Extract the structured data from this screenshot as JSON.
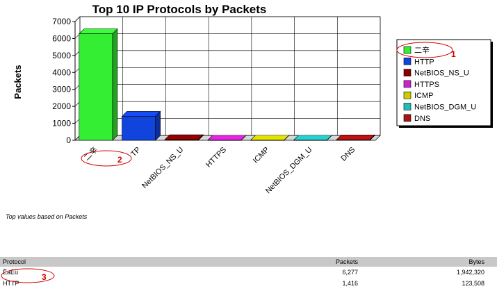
{
  "chart_data": {
    "type": "bar",
    "title": "Top 10 IP Protocols by Packets",
    "ylabel": "Packets",
    "ylim": [
      0,
      7000
    ],
    "yticks": [
      0,
      1000,
      2000,
      3000,
      4000,
      5000,
      6000,
      7000
    ],
    "categories": [
      "二辛",
      "HTTP",
      "NetBIOS_NS_U",
      "HTTPS",
      "ICMP",
      "NetBIOS_DGM_U",
      "DNS"
    ],
    "category_labels": [
      "二辛",
      "TP",
      "NetBIOS_NS_U",
      "HTTPS",
      "ICMP",
      "NetBIOS_DGM_U",
      "DNS"
    ],
    "values": [
      6277,
      1416,
      40,
      10,
      10,
      10,
      30
    ],
    "colors": [
      "#33ee33",
      "#1144dd",
      "#880000",
      "#cc22cc",
      "#cccc00",
      "#22bbbb",
      "#aa1111"
    ],
    "grid": true,
    "legend_position": "right",
    "legend": [
      "二辛",
      "HTTP",
      "NetBIOS_NS_U",
      "HTTPS",
      "ICMP",
      "NetBIOS_DGM_U",
      "DNS"
    ]
  },
  "annotations": [
    "1",
    "2",
    "3"
  ],
  "note": "Top values based on Packets",
  "table": {
    "headers": [
      "Protocol",
      "Packets",
      "Bytes"
    ],
    "rows": [
      [
        "ÊaÈü",
        "6,277",
        "1,942,320"
      ],
      [
        "HTTP",
        "1,416",
        "123,508"
      ]
    ]
  }
}
